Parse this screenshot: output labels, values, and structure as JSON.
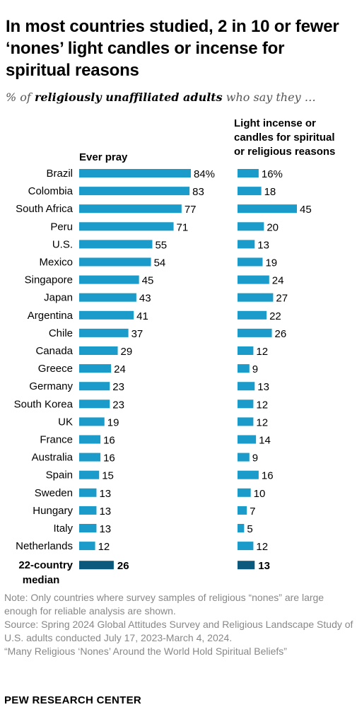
{
  "title": "In most countries studied, 2 in 10 or fewer ‘nones’ light candles or incense for spiritual reasons",
  "subtitle": {
    "prefix": "% of ",
    "bold": "religiously unaffiliated adults",
    "suffix": " who say they …"
  },
  "colors": {
    "bar": "#1a9bc9",
    "median_bar": "#0b5a7e"
  },
  "chart_data": {
    "type": "bar",
    "categories": [
      "Brazil",
      "Colombia",
      "South Africa",
      "Peru",
      "U.S.",
      "Mexico",
      "Singapore",
      "Japan",
      "Argentina",
      "Chile",
      "Canada",
      "Greece",
      "Germany",
      "South Korea",
      "UK",
      "France",
      "Australia",
      "Spain",
      "Sweden",
      "Hungary",
      "Italy",
      "Netherlands"
    ],
    "series": [
      {
        "name": "Ever pray",
        "values": [
          84,
          83,
          77,
          71,
          55,
          54,
          45,
          43,
          41,
          37,
          29,
          24,
          23,
          23,
          19,
          16,
          16,
          15,
          13,
          13,
          13,
          12
        ],
        "median": 26,
        "first_label_suffix": "%"
      },
      {
        "name": "Light incense or candles for spiritual or religious reasons",
        "values": [
          16,
          18,
          45,
          20,
          13,
          19,
          24,
          27,
          22,
          26,
          12,
          9,
          13,
          12,
          12,
          14,
          9,
          16,
          10,
          7,
          5,
          12
        ],
        "median": 13,
        "first_label_suffix": "%"
      }
    ],
    "median_label": "22-country median"
  },
  "notes": [
    "Note: Only countries where survey samples of religious “nones” are large enough for reliable analysis are shown.",
    "Source: Spring 2024 Global Attitudes Survey and Religious Landscape Study of U.S. adults conducted July 17, 2023-March 4, 2024.",
    "“Many Religious ‘Nones’ Around the World Hold Spiritual Beliefs”"
  ],
  "footer": "PEW RESEARCH CENTER"
}
